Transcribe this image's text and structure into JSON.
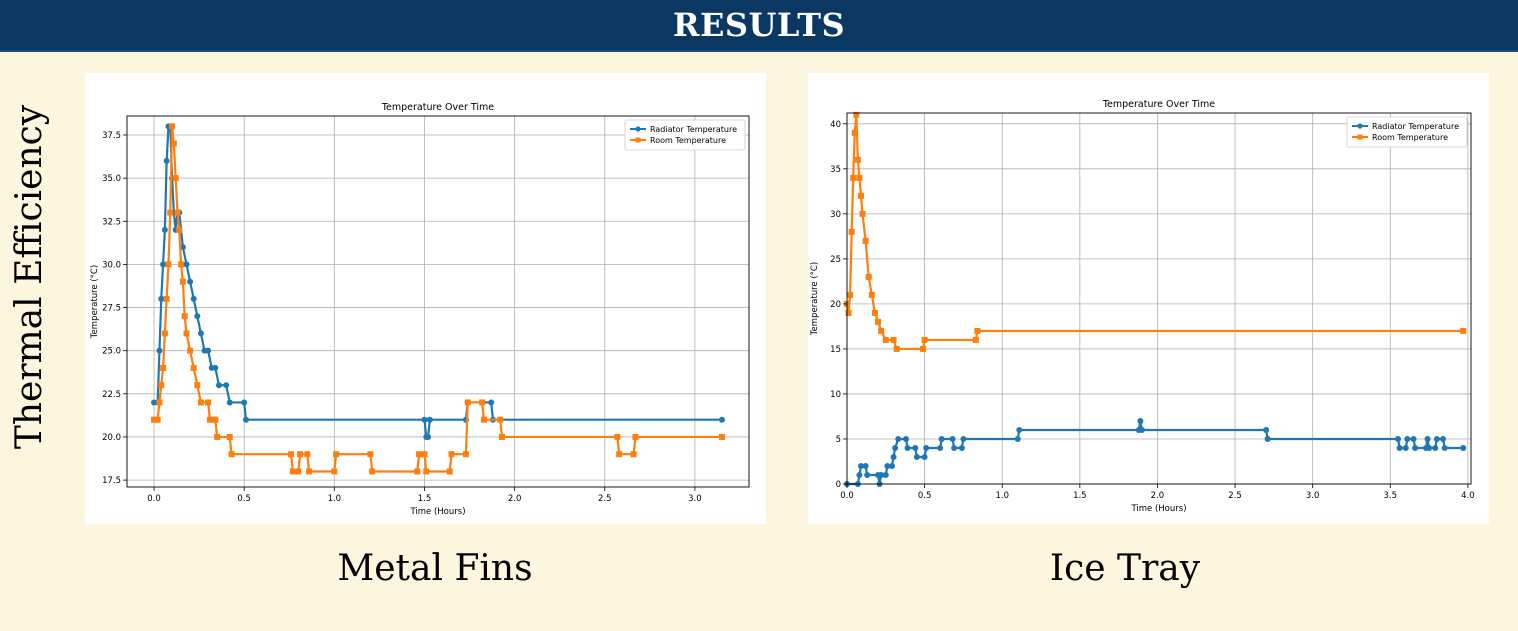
{
  "header": {
    "title": "RESULTS"
  },
  "side_label": "Thermal Efficiency",
  "captions": {
    "left": "Metal Fins",
    "right": "Ice Tray"
  },
  "colors": {
    "header_bg": "#0b3763",
    "page_bg": "#fdf6de",
    "radiator": "#1f77b4",
    "room": "#ff7f0e"
  },
  "chart_data": [
    {
      "type": "line",
      "title": "Temperature Over Time",
      "xlabel": "Time (Hours)",
      "ylabel": "Temperature (°C)",
      "xlim": [
        -0.15,
        3.3
      ],
      "ylim": [
        17.1,
        38.6
      ],
      "xticks": [
        0.0,
        0.5,
        1.0,
        1.5,
        2.0,
        2.5,
        3.0
      ],
      "xtick_labels": [
        "0.0",
        "0.5",
        "1.0",
        "1.5",
        "2.0",
        "2.5",
        "3.0"
      ],
      "yticks": [
        17.5,
        20.0,
        22.5,
        25.0,
        27.5,
        30.0,
        32.5,
        35.0,
        37.5
      ],
      "ytick_labels": [
        "17.5",
        "20.0",
        "22.5",
        "25.0",
        "27.5",
        "30.0",
        "32.5",
        "35.0",
        "37.5"
      ],
      "grid": true,
      "legend_position": "top-right",
      "series": [
        {
          "name": "Radiator Temperature",
          "marker": "circle",
          "points": [
            [
              0.0,
              22
            ],
            [
              0.02,
              22
            ],
            [
              0.03,
              25
            ],
            [
              0.04,
              28
            ],
            [
              0.05,
              30
            ],
            [
              0.06,
              32
            ],
            [
              0.07,
              36
            ],
            [
              0.08,
              38
            ],
            [
              0.09,
              38
            ],
            [
              0.1,
              35
            ],
            [
              0.11,
              33
            ],
            [
              0.12,
              32
            ],
            [
              0.13,
              33
            ],
            [
              0.14,
              33
            ],
            [
              0.16,
              31
            ],
            [
              0.18,
              30
            ],
            [
              0.2,
              29
            ],
            [
              0.22,
              28
            ],
            [
              0.24,
              27
            ],
            [
              0.26,
              26
            ],
            [
              0.28,
              25
            ],
            [
              0.3,
              25
            ],
            [
              0.32,
              24
            ],
            [
              0.34,
              24
            ],
            [
              0.36,
              23
            ],
            [
              0.4,
              23
            ],
            [
              0.42,
              22
            ],
            [
              0.5,
              22
            ],
            [
              0.51,
              21
            ],
            [
              1.5,
              21
            ],
            [
              1.51,
              20
            ],
            [
              1.52,
              20
            ],
            [
              1.53,
              21
            ],
            [
              1.73,
              21
            ],
            [
              1.74,
              22
            ],
            [
              1.87,
              22
            ],
            [
              1.88,
              21
            ],
            [
              3.15,
              21
            ]
          ]
        },
        {
          "name": "Room Temperature",
          "marker": "square",
          "points": [
            [
              0.0,
              21
            ],
            [
              0.02,
              21
            ],
            [
              0.03,
              22
            ],
            [
              0.04,
              23
            ],
            [
              0.05,
              24
            ],
            [
              0.06,
              26
            ],
            [
              0.07,
              28
            ],
            [
              0.08,
              30
            ],
            [
              0.09,
              33
            ],
            [
              0.1,
              38
            ],
            [
              0.11,
              37
            ],
            [
              0.12,
              35
            ],
            [
              0.13,
              33
            ],
            [
              0.14,
              32
            ],
            [
              0.15,
              30
            ],
            [
              0.16,
              29
            ],
            [
              0.17,
              27
            ],
            [
              0.18,
              26
            ],
            [
              0.2,
              25
            ],
            [
              0.22,
              24
            ],
            [
              0.24,
              23
            ],
            [
              0.26,
              22
            ],
            [
              0.3,
              22
            ],
            [
              0.31,
              21
            ],
            [
              0.34,
              21
            ],
            [
              0.35,
              20
            ],
            [
              0.42,
              20
            ],
            [
              0.43,
              19
            ],
            [
              0.76,
              19
            ],
            [
              0.77,
              18
            ],
            [
              0.8,
              18
            ],
            [
              0.81,
              19
            ],
            [
              0.85,
              19
            ],
            [
              0.86,
              18
            ],
            [
              1.0,
              18
            ],
            [
              1.01,
              19
            ],
            [
              1.2,
              19
            ],
            [
              1.21,
              18
            ],
            [
              1.46,
              18
            ],
            [
              1.47,
              19
            ],
            [
              1.5,
              19
            ],
            [
              1.51,
              18
            ],
            [
              1.64,
              18
            ],
            [
              1.65,
              19
            ],
            [
              1.73,
              19
            ],
            [
              1.74,
              22
            ],
            [
              1.82,
              22
            ],
            [
              1.83,
              21
            ],
            [
              1.92,
              21
            ],
            [
              1.93,
              20
            ],
            [
              2.57,
              20
            ],
            [
              2.58,
              19
            ],
            [
              2.66,
              19
            ],
            [
              2.67,
              20
            ],
            [
              3.15,
              20
            ]
          ]
        }
      ]
    },
    {
      "type": "line",
      "title": "Temperature Over Time",
      "xlabel": "Time (Hours)",
      "ylabel": "Temperature (°C)",
      "xlim": [
        0.0,
        4.02
      ],
      "ylim": [
        0,
        41.2
      ],
      "xticks": [
        0.0,
        0.5,
        1.0,
        1.5,
        2.0,
        2.5,
        3.0,
        3.5,
        4.0
      ],
      "xtick_labels": [
        "0.0",
        "0.5",
        "1.0",
        "1.5",
        "2.0",
        "2.5",
        "3.0",
        "3.5",
        "4.0"
      ],
      "yticks": [
        0,
        5,
        10,
        15,
        20,
        25,
        30,
        35,
        40
      ],
      "ytick_labels": [
        "0",
        "5",
        "10",
        "15",
        "20",
        "25",
        "30",
        "35",
        "40"
      ],
      "grid": true,
      "legend_position": "top-right",
      "series": [
        {
          "name": "Radiator Temperature",
          "marker": "circle",
          "points": [
            [
              0.0,
              0
            ],
            [
              0.07,
              0
            ],
            [
              0.08,
              1
            ],
            [
              0.09,
              2
            ],
            [
              0.12,
              2
            ],
            [
              0.13,
              1
            ],
            [
              0.2,
              1
            ],
            [
              0.21,
              0
            ],
            [
              0.22,
              1
            ],
            [
              0.25,
              1
            ],
            [
              0.26,
              2
            ],
            [
              0.29,
              2
            ],
            [
              0.3,
              3
            ],
            [
              0.31,
              4
            ],
            [
              0.33,
              5
            ],
            [
              0.38,
              5
            ],
            [
              0.39,
              4
            ],
            [
              0.44,
              4
            ],
            [
              0.45,
              3
            ],
            [
              0.5,
              3
            ],
            [
              0.51,
              4
            ],
            [
              0.6,
              4
            ],
            [
              0.61,
              5
            ],
            [
              0.68,
              5
            ],
            [
              0.69,
              4
            ],
            [
              0.74,
              4
            ],
            [
              0.75,
              5
            ],
            [
              1.1,
              5
            ],
            [
              1.11,
              6
            ],
            [
              1.88,
              6
            ],
            [
              1.89,
              7
            ],
            [
              1.9,
              6
            ],
            [
              2.7,
              6
            ],
            [
              2.71,
              5
            ],
            [
              3.55,
              5
            ],
            [
              3.56,
              4
            ],
            [
              3.6,
              4
            ],
            [
              3.61,
              5
            ],
            [
              3.65,
              5
            ],
            [
              3.66,
              4
            ],
            [
              3.73,
              4
            ],
            [
              3.74,
              5
            ],
            [
              3.75,
              4
            ],
            [
              3.79,
              4
            ],
            [
              3.8,
              5
            ],
            [
              3.84,
              5
            ],
            [
              3.85,
              4
            ],
            [
              3.97,
              4
            ]
          ]
        },
        {
          "name": "Room Temperature",
          "marker": "square",
          "points": [
            [
              0.0,
              20
            ],
            [
              0.01,
              19
            ],
            [
              0.02,
              21
            ],
            [
              0.03,
              28
            ],
            [
              0.04,
              34
            ],
            [
              0.05,
              39
            ],
            [
              0.06,
              41
            ],
            [
              0.07,
              36
            ],
            [
              0.08,
              34
            ],
            [
              0.09,
              32
            ],
            [
              0.1,
              30
            ],
            [
              0.12,
              27
            ],
            [
              0.14,
              23
            ],
            [
              0.16,
              21
            ],
            [
              0.18,
              19
            ],
            [
              0.2,
              18
            ],
            [
              0.22,
              17
            ],
            [
              0.25,
              16
            ],
            [
              0.3,
              16
            ],
            [
              0.32,
              15
            ],
            [
              0.49,
              15
            ],
            [
              0.5,
              16
            ],
            [
              0.83,
              16
            ],
            [
              0.84,
              17
            ],
            [
              3.97,
              17
            ]
          ]
        }
      ]
    }
  ]
}
